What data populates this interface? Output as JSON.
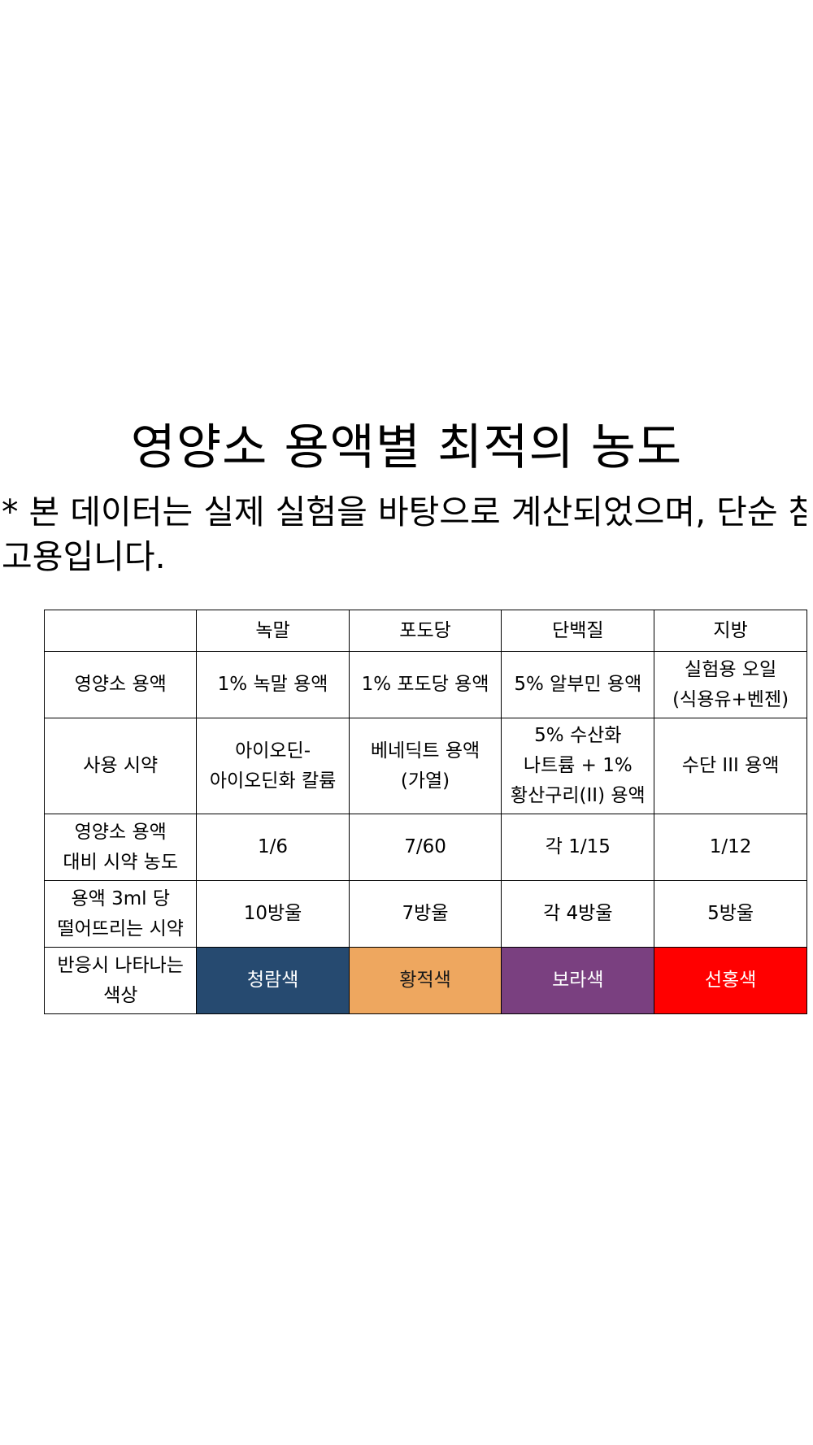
{
  "title": "영양소 용액별 최적의 농도",
  "note": {
    "line1": "* 본 데이터는 실제 실험을 바탕으로 계산되었으며,  단순 참",
    "line2": "고용입니다."
  },
  "table": {
    "columns": [
      "",
      "녹말",
      "포도당",
      "단백질",
      "지방"
    ],
    "rows": [
      {
        "label": "영양소 용액",
        "cells": [
          "1% 녹말 용액",
          "1% 포도당 용액",
          "5% 알부민 용액",
          "실험용 오일\n(식용유+벤젠)"
        ]
      },
      {
        "label": "사용 시약",
        "cells": [
          "아이오딘-\n아이오딘화 칼륨",
          "베네딕트 용액\n(가열)",
          "5% 수산화\n나트륨 + 1%\n황산구리(II) 용액",
          "수단 III 용액"
        ]
      },
      {
        "label": "영양소 용액\n대비 시약 농도",
        "cells": [
          "1/6",
          "7/60",
          "각 1/15",
          "1/12"
        ]
      },
      {
        "label": "용액 3ml 당\n떨어뜨리는 시약",
        "cells": [
          "10방울",
          "7방울",
          "각 4방울",
          "5방울"
        ]
      }
    ],
    "color_row": {
      "label": "반응시 나타나는\n색상",
      "cells": [
        {
          "text": "청람색",
          "bg": "#264a70",
          "fg": "#ffffff"
        },
        {
          "text": "황적색",
          "bg": "#eea75f",
          "fg": "#1a1a1a"
        },
        {
          "text": "보라색",
          "bg": "#7a4080",
          "fg": "#ffffff"
        },
        {
          "text": "선홍색",
          "bg": "#ff0000",
          "fg": "#ffffff"
        }
      ]
    }
  }
}
